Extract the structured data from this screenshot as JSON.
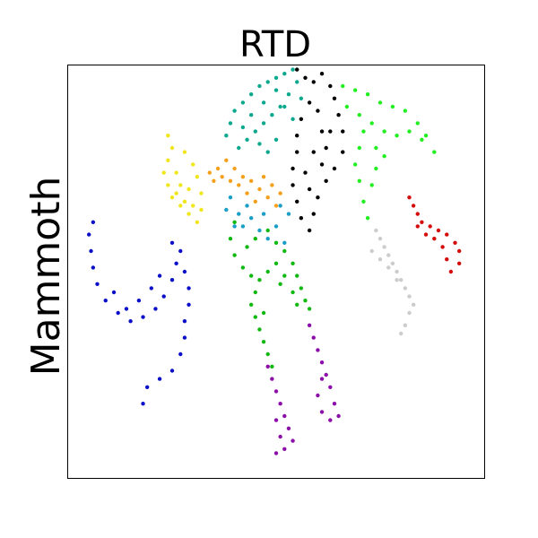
{
  "chart_data": {
    "type": "scatter",
    "title": "RTD",
    "xlabel": "",
    "ylabel": "Mammoth",
    "grid": false,
    "legend": "none",
    "ticks": "none",
    "xlim": [
      0,
      1
    ],
    "ylim": [
      0,
      1
    ],
    "series": [
      {
        "color": "#0b10c8",
        "points": [
          [
            0.06,
            0.62
          ],
          [
            0.05,
            0.59
          ],
          [
            0.055,
            0.55
          ],
          [
            0.06,
            0.51
          ],
          [
            0.07,
            0.47
          ],
          [
            0.09,
            0.43
          ],
          [
            0.12,
            0.4
          ],
          [
            0.15,
            0.38
          ],
          [
            0.18,
            0.39
          ],
          [
            0.21,
            0.41
          ],
          [
            0.23,
            0.44
          ],
          [
            0.25,
            0.48
          ],
          [
            0.26,
            0.52
          ],
          [
            0.27,
            0.55
          ],
          [
            0.25,
            0.57
          ],
          [
            0.22,
            0.49
          ],
          [
            0.2,
            0.46
          ],
          [
            0.17,
            0.43
          ],
          [
            0.14,
            0.41
          ],
          [
            0.11,
            0.45
          ],
          [
            0.28,
            0.5
          ],
          [
            0.29,
            0.46
          ],
          [
            0.29,
            0.42
          ],
          [
            0.28,
            0.38
          ],
          [
            0.28,
            0.34
          ],
          [
            0.27,
            0.3
          ],
          [
            0.25,
            0.26
          ],
          [
            0.22,
            0.24
          ],
          [
            0.19,
            0.22
          ],
          [
            0.18,
            0.18
          ]
        ]
      },
      {
        "color": "#f0e61e",
        "points": [
          [
            0.24,
            0.83
          ],
          [
            0.25,
            0.8
          ],
          [
            0.24,
            0.77
          ],
          [
            0.23,
            0.74
          ],
          [
            0.24,
            0.71
          ],
          [
            0.25,
            0.68
          ],
          [
            0.27,
            0.66
          ],
          [
            0.29,
            0.64
          ],
          [
            0.31,
            0.62
          ],
          [
            0.32,
            0.65
          ],
          [
            0.32,
            0.69
          ],
          [
            0.31,
            0.73
          ],
          [
            0.3,
            0.76
          ],
          [
            0.28,
            0.79
          ],
          [
            0.26,
            0.74
          ],
          [
            0.27,
            0.71
          ],
          [
            0.29,
            0.7
          ],
          [
            0.28,
            0.67
          ],
          [
            0.3,
            0.66
          ],
          [
            0.26,
            0.69
          ]
        ]
      },
      {
        "color": "#f5a01c",
        "points": [
          [
            0.34,
            0.74
          ],
          [
            0.36,
            0.75
          ],
          [
            0.38,
            0.77
          ],
          [
            0.4,
            0.75
          ],
          [
            0.42,
            0.73
          ],
          [
            0.44,
            0.72
          ],
          [
            0.46,
            0.7
          ],
          [
            0.48,
            0.68
          ],
          [
            0.5,
            0.66
          ],
          [
            0.45,
            0.67
          ],
          [
            0.43,
            0.69
          ],
          [
            0.41,
            0.71
          ],
          [
            0.39,
            0.72
          ],
          [
            0.47,
            0.73
          ],
          [
            0.49,
            0.71
          ],
          [
            0.51,
            0.69
          ],
          [
            0.37,
            0.73
          ],
          [
            0.35,
            0.72
          ]
        ]
      },
      {
        "color": "#1a9ec8",
        "points": [
          [
            0.39,
            0.68
          ],
          [
            0.41,
            0.64
          ],
          [
            0.42,
            0.61
          ],
          [
            0.44,
            0.63
          ],
          [
            0.46,
            0.6
          ],
          [
            0.48,
            0.58
          ],
          [
            0.5,
            0.61
          ],
          [
            0.52,
            0.57
          ],
          [
            0.53,
            0.64
          ],
          [
            0.51,
            0.66
          ],
          [
            0.47,
            0.64
          ],
          [
            0.43,
            0.66
          ],
          [
            0.38,
            0.65
          ],
          [
            0.4,
            0.61
          ]
        ]
      },
      {
        "color": "#0ca88e",
        "points": [
          [
            0.39,
            0.86
          ],
          [
            0.4,
            0.89
          ],
          [
            0.42,
            0.91
          ],
          [
            0.44,
            0.93
          ],
          [
            0.46,
            0.95
          ],
          [
            0.48,
            0.96
          ],
          [
            0.5,
            0.97
          ],
          [
            0.52,
            0.98
          ],
          [
            0.54,
            0.99
          ],
          [
            0.55,
            0.96
          ],
          [
            0.53,
            0.93
          ],
          [
            0.51,
            0.9
          ],
          [
            0.49,
            0.88
          ],
          [
            0.47,
            0.86
          ],
          [
            0.45,
            0.84
          ],
          [
            0.43,
            0.82
          ],
          [
            0.41,
            0.8
          ],
          [
            0.44,
            0.88
          ],
          [
            0.47,
            0.91
          ],
          [
            0.5,
            0.94
          ],
          [
            0.52,
            0.9
          ],
          [
            0.54,
            0.87
          ],
          [
            0.56,
            0.92
          ],
          [
            0.42,
            0.85
          ],
          [
            0.46,
            0.81
          ],
          [
            0.48,
            0.79
          ],
          [
            0.5,
            0.82
          ],
          [
            0.38,
            0.83
          ]
        ]
      },
      {
        "color": "#000000",
        "points": [
          [
            0.55,
            0.99
          ],
          [
            0.57,
            0.97
          ],
          [
            0.59,
            0.96
          ],
          [
            0.61,
            0.98
          ],
          [
            0.63,
            0.95
          ],
          [
            0.64,
            0.92
          ],
          [
            0.65,
            0.88
          ],
          [
            0.66,
            0.84
          ],
          [
            0.66,
            0.79
          ],
          [
            0.64,
            0.75
          ],
          [
            0.62,
            0.72
          ],
          [
            0.6,
            0.68
          ],
          [
            0.59,
            0.64
          ],
          [
            0.58,
            0.6
          ],
          [
            0.56,
            0.63
          ],
          [
            0.55,
            0.67
          ],
          [
            0.54,
            0.71
          ],
          [
            0.54,
            0.75
          ],
          [
            0.55,
            0.79
          ],
          [
            0.55,
            0.83
          ],
          [
            0.56,
            0.87
          ],
          [
            0.58,
            0.91
          ],
          [
            0.6,
            0.89
          ],
          [
            0.61,
            0.84
          ],
          [
            0.62,
            0.8
          ],
          [
            0.63,
            0.84
          ],
          [
            0.59,
            0.79
          ],
          [
            0.57,
            0.74
          ],
          [
            0.58,
            0.7
          ],
          [
            0.61,
            0.76
          ]
        ]
      },
      {
        "color": "#22ee22",
        "points": [
          [
            0.66,
            0.95
          ],
          [
            0.69,
            0.94
          ],
          [
            0.72,
            0.93
          ],
          [
            0.75,
            0.91
          ],
          [
            0.78,
            0.9
          ],
          [
            0.81,
            0.89
          ],
          [
            0.84,
            0.86
          ],
          [
            0.86,
            0.83
          ],
          [
            0.88,
            0.79
          ],
          [
            0.85,
            0.82
          ],
          [
            0.82,
            0.84
          ],
          [
            0.79,
            0.83
          ],
          [
            0.76,
            0.84
          ],
          [
            0.73,
            0.86
          ],
          [
            0.71,
            0.84
          ],
          [
            0.7,
            0.8
          ],
          [
            0.69,
            0.76
          ],
          [
            0.7,
            0.72
          ],
          [
            0.71,
            0.67
          ],
          [
            0.72,
            0.63
          ],
          [
            0.74,
            0.8
          ],
          [
            0.76,
            0.78
          ],
          [
            0.74,
            0.75
          ],
          [
            0.73,
            0.71
          ],
          [
            0.7,
            0.88
          ],
          [
            0.67,
            0.9
          ]
        ]
      },
      {
        "color": "#d40c0c",
        "points": [
          [
            0.82,
            0.68
          ],
          [
            0.83,
            0.66
          ],
          [
            0.84,
            0.64
          ],
          [
            0.85,
            0.62
          ],
          [
            0.87,
            0.61
          ],
          [
            0.89,
            0.6
          ],
          [
            0.91,
            0.59
          ],
          [
            0.93,
            0.57
          ],
          [
            0.94,
            0.55
          ],
          [
            0.94,
            0.52
          ],
          [
            0.92,
            0.5
          ],
          [
            0.91,
            0.53
          ],
          [
            0.9,
            0.56
          ],
          [
            0.88,
            0.58
          ],
          [
            0.86,
            0.59
          ],
          [
            0.84,
            0.61
          ]
        ]
      },
      {
        "color": "#cccccc",
        "points": [
          [
            0.74,
            0.6
          ],
          [
            0.75,
            0.58
          ],
          [
            0.76,
            0.56
          ],
          [
            0.77,
            0.54
          ],
          [
            0.78,
            0.52
          ],
          [
            0.79,
            0.5
          ],
          [
            0.8,
            0.48
          ],
          [
            0.81,
            0.46
          ],
          [
            0.82,
            0.44
          ],
          [
            0.83,
            0.42
          ],
          [
            0.82,
            0.4
          ],
          [
            0.81,
            0.37
          ],
          [
            0.8,
            0.35
          ],
          [
            0.79,
            0.48
          ],
          [
            0.77,
            0.51
          ],
          [
            0.75,
            0.53
          ],
          [
            0.73,
            0.55
          ]
        ]
      },
      {
        "color": "#11b811",
        "points": [
          [
            0.4,
            0.62
          ],
          [
            0.39,
            0.58
          ],
          [
            0.4,
            0.54
          ],
          [
            0.42,
            0.51
          ],
          [
            0.44,
            0.49
          ],
          [
            0.46,
            0.48
          ],
          [
            0.48,
            0.5
          ],
          [
            0.5,
            0.52
          ],
          [
            0.52,
            0.55
          ],
          [
            0.54,
            0.52
          ],
          [
            0.55,
            0.49
          ],
          [
            0.56,
            0.46
          ],
          [
            0.57,
            0.43
          ],
          [
            0.58,
            0.41
          ],
          [
            0.55,
            0.42
          ],
          [
            0.54,
            0.45
          ],
          [
            0.51,
            0.47
          ],
          [
            0.45,
            0.45
          ],
          [
            0.44,
            0.42
          ],
          [
            0.45,
            0.39
          ],
          [
            0.46,
            0.36
          ],
          [
            0.47,
            0.33
          ],
          [
            0.48,
            0.3
          ],
          [
            0.49,
            0.27
          ],
          [
            0.47,
            0.4
          ],
          [
            0.43,
            0.56
          ],
          [
            0.45,
            0.58
          ],
          [
            0.48,
            0.6
          ],
          [
            0.5,
            0.57
          ],
          [
            0.52,
            0.49
          ]
        ]
      },
      {
        "color": "#8b0ea8",
        "points": [
          [
            0.48,
            0.27
          ],
          [
            0.49,
            0.24
          ],
          [
            0.5,
            0.21
          ],
          [
            0.51,
            0.18
          ],
          [
            0.52,
            0.15
          ],
          [
            0.53,
            0.12
          ],
          [
            0.54,
            0.09
          ],
          [
            0.52,
            0.07
          ],
          [
            0.5,
            0.06
          ],
          [
            0.51,
            0.1
          ],
          [
            0.5,
            0.14
          ],
          [
            0.58,
            0.37
          ],
          [
            0.59,
            0.34
          ],
          [
            0.6,
            0.31
          ],
          [
            0.61,
            0.28
          ],
          [
            0.62,
            0.25
          ],
          [
            0.63,
            0.22
          ],
          [
            0.64,
            0.18
          ],
          [
            0.65,
            0.15
          ],
          [
            0.63,
            0.14
          ],
          [
            0.61,
            0.16
          ],
          [
            0.6,
            0.2
          ],
          [
            0.61,
            0.24
          ]
        ]
      }
    ]
  }
}
